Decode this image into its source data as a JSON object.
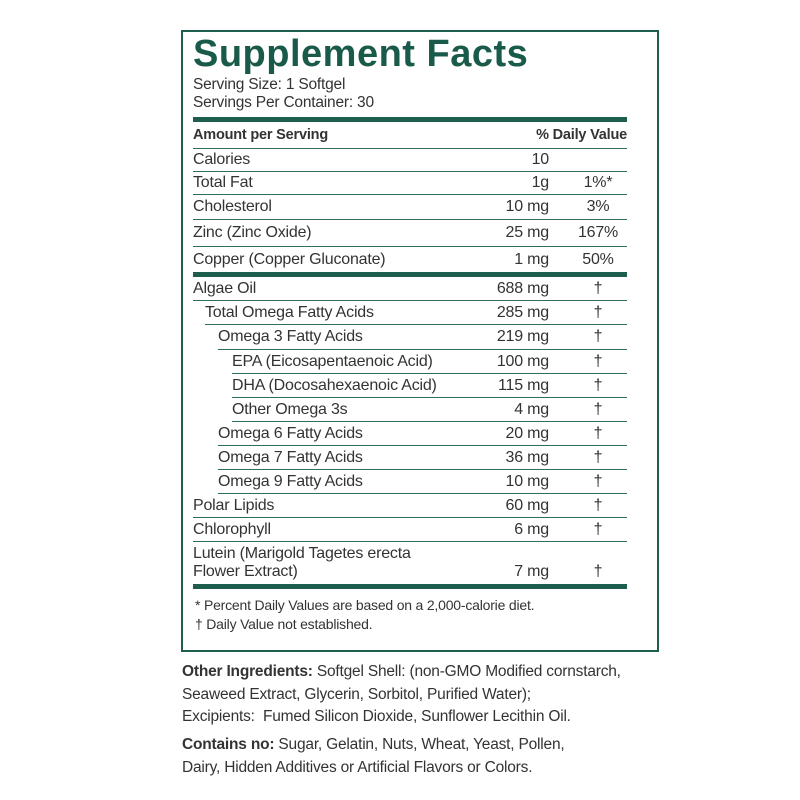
{
  "header": {
    "title": "Supplement Facts",
    "serving_size": "Serving Size: 1 Softgel",
    "servings_per_container": "Servings Per Container: 30"
  },
  "columns": {
    "amount": "Amount per Serving",
    "daily_value": "% Daily Value"
  },
  "rows": [
    {
      "name": "Calories",
      "amount": "10"
    },
    {
      "name": "Total Fat",
      "amount": "1g",
      "dv": "1%*"
    },
    {
      "name": "Cholesterol",
      "amount": "10 mg",
      "dv": "3%"
    },
    {
      "name": "Zinc (Zinc Oxide)",
      "amount": "25 mg",
      "dv": "167%"
    },
    {
      "name": "Copper (Copper Gluconate)",
      "amount": "1 mg",
      "dv": "50%"
    },
    {
      "name": "Algae Oil",
      "amount": "688 mg",
      "dv": "†"
    },
    {
      "name": "Total Omega Fatty Acids",
      "amount": "285 mg",
      "dv": "†"
    },
    {
      "name": "Omega 3 Fatty Acids",
      "amount": "219 mg",
      "dv": "†"
    },
    {
      "name": "EPA (Eicosapentaenoic Acid)",
      "amount": "100 mg",
      "dv": "†"
    },
    {
      "name": "DHA (Docosahexaenoic Acid)",
      "amount": "115 mg",
      "dv": "†"
    },
    {
      "name": "Other Omega 3s",
      "amount": "4 mg",
      "dv": "†"
    },
    {
      "name": "Omega 6 Fatty Acids",
      "amount": "20 mg",
      "dv": "†"
    },
    {
      "name": "Omega 7 Fatty Acids",
      "amount": "36 mg",
      "dv": "†"
    },
    {
      "name": "Omega 9 Fatty Acids",
      "amount": "10 mg",
      "dv": "†"
    },
    {
      "name": "Polar Lipids",
      "amount": "60 mg",
      "dv": "†"
    },
    {
      "name": "Chlorophyll",
      "amount": "6 mg",
      "dv": "†"
    },
    {
      "name": [
        "Lutein (Marigold Tagetes erecta",
        "Flower Extract)"
      ],
      "amount": "7 mg",
      "dv": "†"
    }
  ],
  "footnotes": [
    "* Percent Daily Values are based on a 2,000-calorie diet.",
    "† Daily Value not established."
  ],
  "other_ingredients": {
    "label": "Other Ingredients:",
    "lines": [
      "Softgel Shell: (non-GMO Modified cornstarch,",
      "Seaweed Extract, Glycerin, Sorbitol, Purified Water);",
      "Excipients:  Fumed Silicon Dioxide, Sunflower Lecithin Oil."
    ]
  },
  "contains_no": {
    "label": "Contains no:",
    "lines": [
      "Sugar, Gelatin, Nuts, Wheat, Yeast, Pollen,",
      "Dairy, Hidden Additives or Artificial Flavors or Colors."
    ]
  }
}
